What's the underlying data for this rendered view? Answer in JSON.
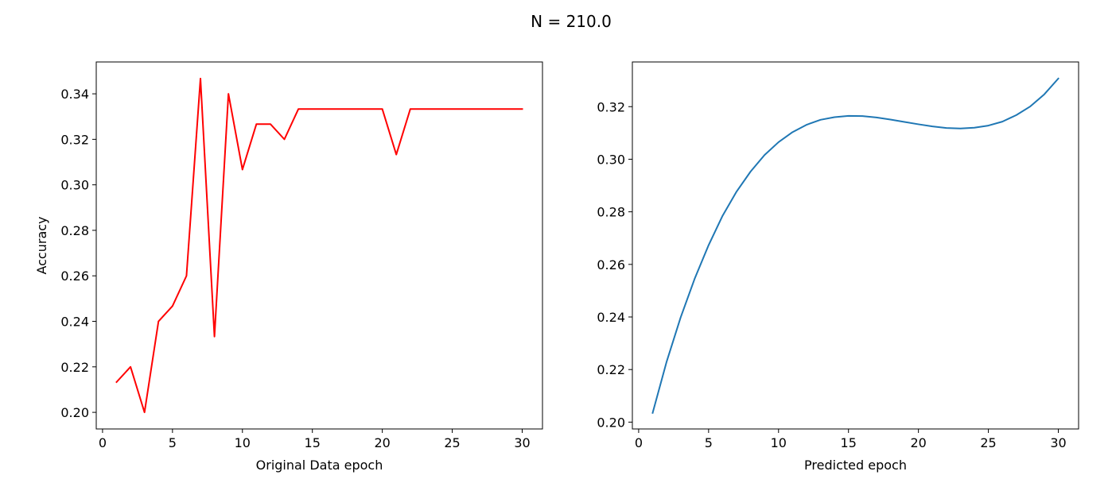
{
  "figure": {
    "suptitle": "N = 210.0"
  },
  "chart_data": [
    {
      "type": "line",
      "xlabel": "Original Data epoch",
      "ylabel": "Accuracy",
      "xlim": [
        -0.45,
        31.45
      ],
      "ylim": [
        0.1927,
        0.354
      ],
      "xticks": [
        0,
        5,
        10,
        15,
        20,
        25,
        30
      ],
      "yticks": [
        0.2,
        0.22,
        0.24,
        0.26,
        0.28,
        0.3,
        0.32,
        0.34
      ],
      "xtick_labels": [
        "0",
        "5",
        "10",
        "15",
        "20",
        "25",
        "30"
      ],
      "ytick_labels": [
        "0.20",
        "0.22",
        "0.24",
        "0.26",
        "0.28",
        "0.30",
        "0.32",
        "0.34"
      ],
      "grid": false,
      "series": [
        {
          "color": "#ff0000",
          "x": [
            1,
            2,
            3,
            4,
            5,
            6,
            7,
            8,
            9,
            10,
            11,
            12,
            13,
            14,
            15,
            16,
            17,
            18,
            19,
            20,
            21,
            22,
            23,
            24,
            25,
            26,
            27,
            28,
            29,
            30
          ],
          "y": [
            0.2133,
            0.22,
            0.2,
            0.24,
            0.2467,
            0.26,
            0.3467,
            0.2333,
            0.34,
            0.3067,
            0.3267,
            0.3267,
            0.32,
            0.3333,
            0.3333,
            0.3333,
            0.3333,
            0.3333,
            0.3333,
            0.3333,
            0.3133,
            0.3333,
            0.3333,
            0.3333,
            0.3333,
            0.3333,
            0.3333,
            0.3333,
            0.3333,
            0.3333
          ]
        }
      ]
    },
    {
      "type": "line",
      "xlabel": "Predicted epoch",
      "ylabel": "",
      "xlim": [
        -0.45,
        31.45
      ],
      "ylim": [
        0.1974,
        0.337
      ],
      "xticks": [
        0,
        5,
        10,
        15,
        20,
        25,
        30
      ],
      "yticks": [
        0.2,
        0.22,
        0.24,
        0.26,
        0.28,
        0.3,
        0.32
      ],
      "xtick_labels": [
        "0",
        "5",
        "10",
        "15",
        "20",
        "25",
        "30"
      ],
      "ytick_labels": [
        "0.20",
        "0.22",
        "0.24",
        "0.26",
        "0.28",
        "0.30",
        "0.32"
      ],
      "grid": false,
      "series": [
        {
          "color": "#1f77b4",
          "x": [
            1,
            2,
            3,
            4,
            5,
            6,
            7,
            8,
            9,
            10,
            11,
            12,
            13,
            14,
            15,
            16,
            17,
            18,
            19,
            20,
            21,
            22,
            23,
            24,
            25,
            26,
            27,
            28,
            29,
            30
          ],
          "y": [
            0.2035,
            0.223,
            0.2398,
            0.2545,
            0.2673,
            0.2785,
            0.2877,
            0.2953,
            0.3016,
            0.3065,
            0.3103,
            0.3131,
            0.315,
            0.316,
            0.3165,
            0.3164,
            0.3159,
            0.3151,
            0.3142,
            0.3133,
            0.3125,
            0.3119,
            0.3117,
            0.312,
            0.3128,
            0.3143,
            0.3168,
            0.3201,
            0.3247,
            0.3307
          ]
        }
      ]
    }
  ]
}
